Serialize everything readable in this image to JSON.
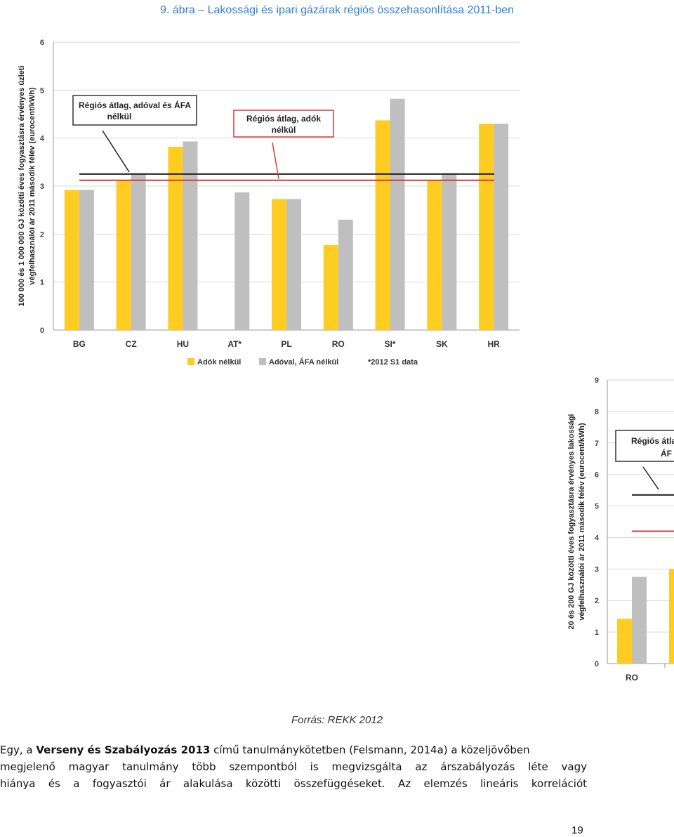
{
  "figure_title": "9. ábra – Lakossági és ipari gázárak régiós összehasonlítása 2011-ben",
  "chart_data": [
    {
      "type": "bar",
      "ylabel_lines": [
        "100 000 és 1 000 000 GJ közötti éves fogyasztásra érvényes üzleti",
        "végfelhasználói ár 2011 második félév (eurocent/kWh)"
      ],
      "ylim": [
        0,
        6
      ],
      "yticks": [
        "0",
        "1",
        "2",
        "3",
        "4",
        "5",
        "6"
      ],
      "categories": [
        "BG",
        "CZ",
        "HU",
        "AT*",
        "PL",
        "RO",
        "SI*",
        "SK",
        "HR"
      ],
      "series": [
        {
          "name": "Adók nélkül",
          "color": "#ffcc22",
          "values": [
            2.92,
            3.12,
            3.82,
            null,
            2.73,
            1.77,
            4.37,
            3.12,
            4.3
          ]
        },
        {
          "name": "Adóval, ÁFA nélkül",
          "color": "#bfbfbf",
          "values": [
            2.92,
            3.27,
            3.93,
            2.87,
            2.73,
            2.3,
            4.82,
            3.27,
            4.3
          ]
        }
      ],
      "reference_lines": [
        {
          "label_lines": [
            "Régiós átlag, adóval és ÁFA",
            "nélkül"
          ],
          "value": 3.25,
          "color": "#222222"
        },
        {
          "label_lines": [
            "Régiós átlag, adók",
            "nélkül"
          ],
          "value": 3.12,
          "color": "#d93a3a"
        }
      ],
      "legend_note": "*2012 S1 data",
      "grid": true,
      "legend_position": "bottom"
    },
    {
      "type": "bar",
      "ylabel_lines": [
        "20 és 200 GJ közötti éves fogyasztásra érvényes lakossági",
        "végfelhasználói ár 2011 második félév (eurocent/kWh)"
      ],
      "ylim": [
        0,
        9
      ],
      "yticks": [
        "0",
        "1",
        "2",
        "3",
        "4",
        "5",
        "6",
        "7",
        "8",
        "9"
      ],
      "categories": [
        "RO"
      ],
      "series": [
        {
          "name": "Adók nélkül",
          "color": "#ffcc22",
          "values": [
            1.42
          ]
        },
        {
          "name": "Adóval, ÁFA nélkül",
          "color": "#bfbfbf",
          "values": [
            2.75
          ]
        }
      ],
      "partial_bar_value": 3.0,
      "reference_lines": [
        {
          "label_lines": [
            "Régiós átla",
            "ÁF"
          ],
          "value": 5.35,
          "color": "#222222"
        },
        {
          "label_lines": [],
          "value": 4.2,
          "color": "#d93a3a"
        }
      ],
      "grid": true
    }
  ],
  "source": "Forrás: REKK 2012",
  "paragraph": {
    "line1_pre": "Egy, a ",
    "line1_bold": "Verseny és Szabályozás 2013",
    "line1_post": " című tanulmánykötetben (Felsmann, 2014a) a közeljövőben",
    "line2": "megjelenő magyar tanulmány több szempontból is megvizsgálta az árszabályozás léte vagy",
    "line3": "hiánya és a fogyasztói ár alakulása közötti összefüggéseket. Az elemzés lineáris korrelációt"
  },
  "page_number": "19"
}
